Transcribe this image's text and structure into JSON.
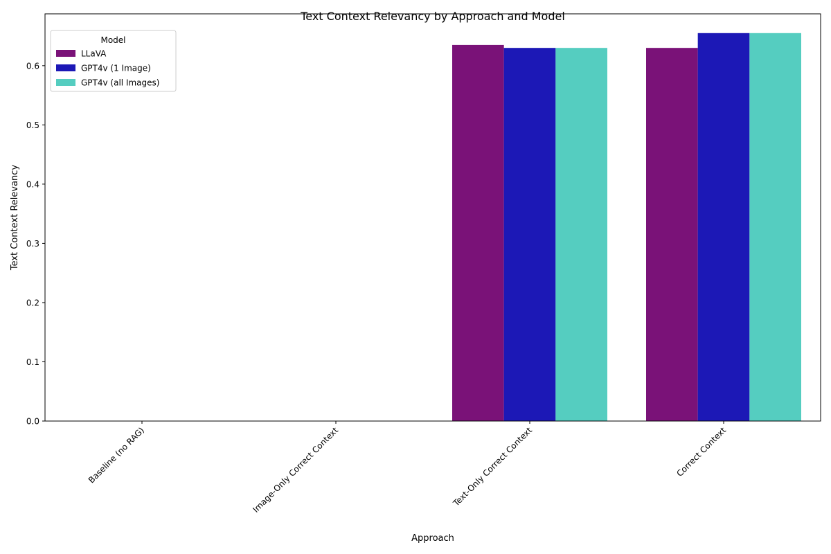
{
  "chart_data": {
    "type": "bar",
    "title": "Text Context Relevancy by Approach and Model",
    "xlabel": "Approach",
    "ylabel": "Text Context Relevancy",
    "categories": [
      "Baseline (no RAG)",
      "Image-Only Correct Context",
      "Text-Only Correct Context",
      "Correct Context"
    ],
    "series": [
      {
        "name": "LLaVA",
        "color": "#7a1278",
        "values": [
          0,
          0,
          0.635,
          0.63
        ]
      },
      {
        "name": "GPT4v (1 Image)",
        "color": "#1c18b6",
        "values": [
          0,
          0,
          0.63,
          0.655
        ]
      },
      {
        "name": "GPT4v (all Images)",
        "color": "#55cdc0",
        "values": [
          0,
          0,
          0.63,
          0.655
        ]
      }
    ],
    "ylim": [
      0,
      0.6875
    ],
    "yticks": [
      "0.0",
      "0.1",
      "0.2",
      "0.3",
      "0.4",
      "0.5",
      "0.6"
    ],
    "legend": {
      "title": "Model",
      "placement": "top-left"
    },
    "grid": false
  }
}
